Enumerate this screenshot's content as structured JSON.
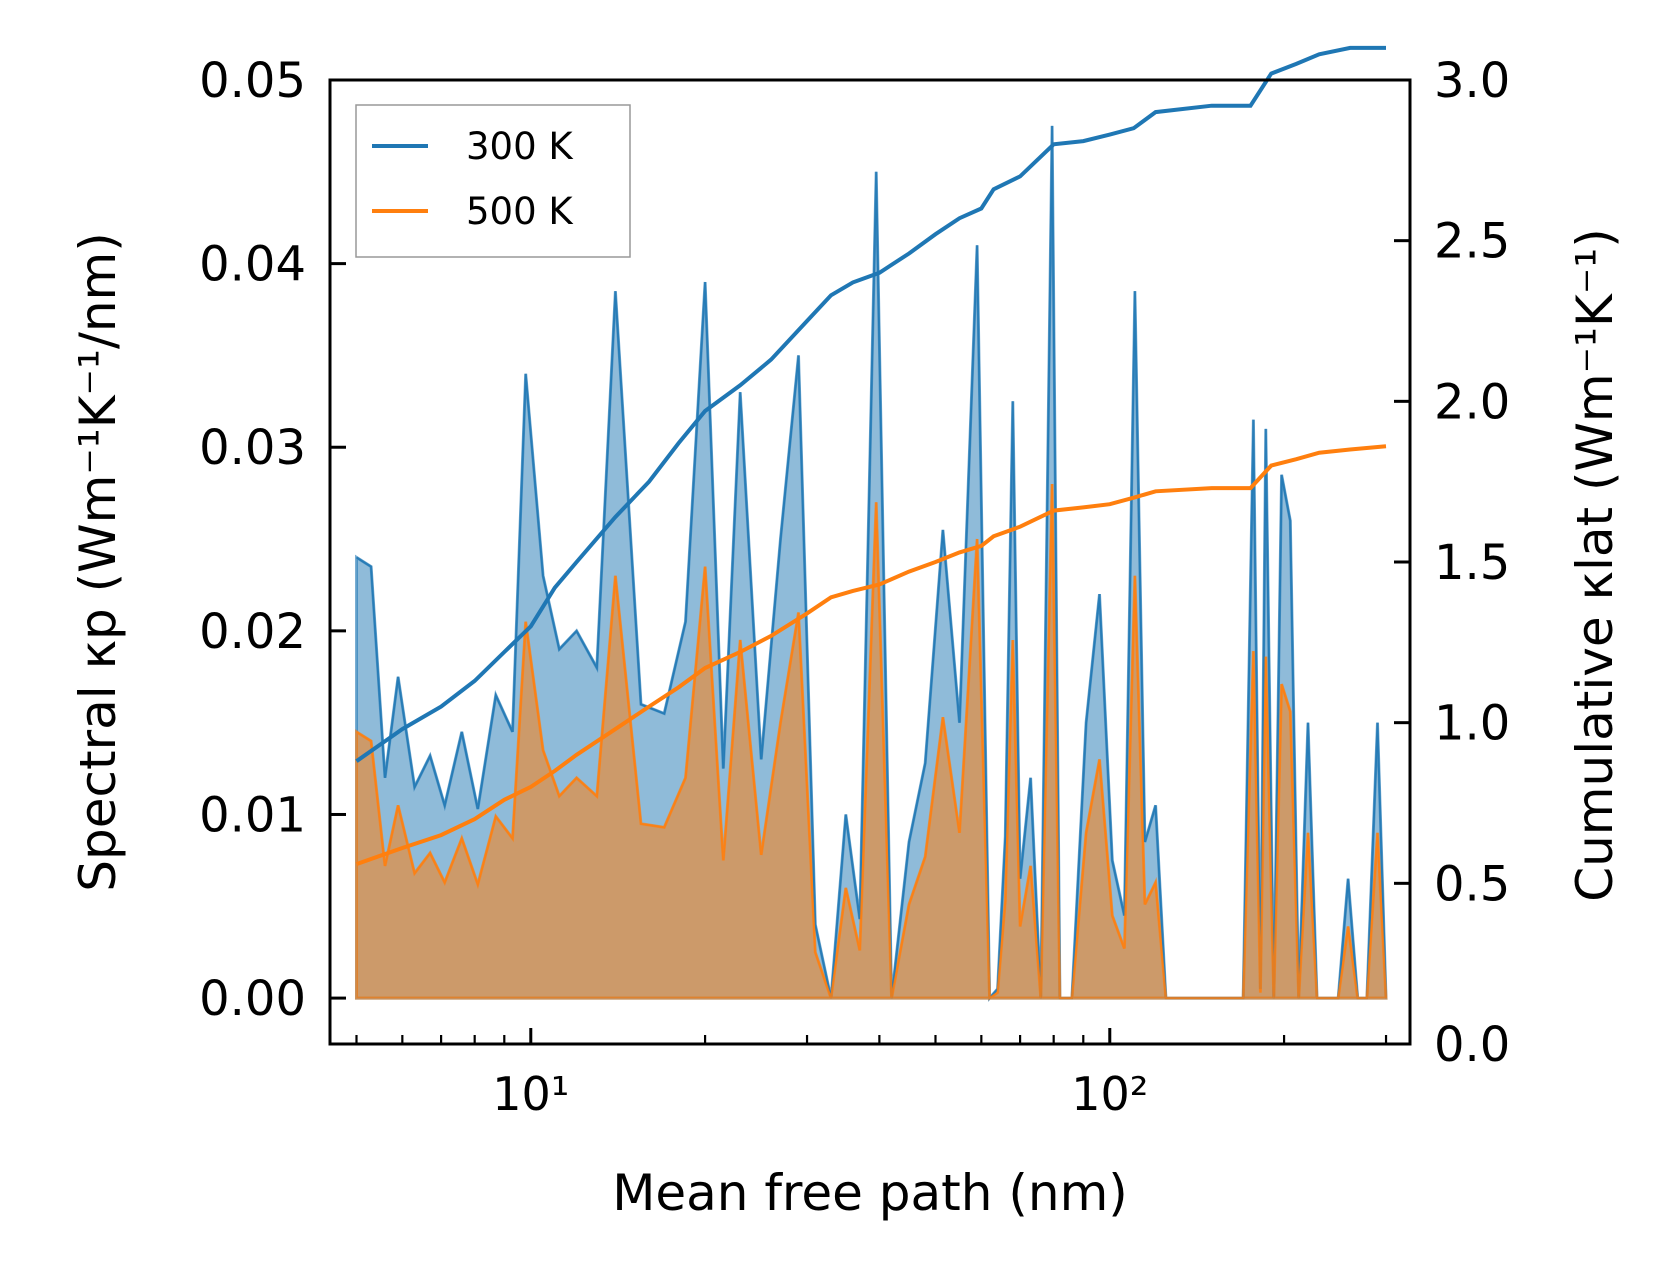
{
  "chart_data": {
    "type": "line",
    "xscale": "log",
    "xlabel": "Mean free path (nm)",
    "ylabel_left": "Spectral κp (Wm⁻¹K⁻¹/nm)",
    "ylabel_right": "Cumulative κlat (Wm⁻¹K⁻¹)",
    "xlim": [
      4.5,
      330
    ],
    "ylim_left": [
      -0.0025,
      0.05
    ],
    "ylim_right": [
      0.0,
      3.0
    ],
    "x_ticks": [
      {
        "value": 10,
        "label": "10¹"
      },
      {
        "value": 100,
        "label": "10²"
      }
    ],
    "y_left_ticks": [
      0.0,
      0.01,
      0.02,
      0.03,
      0.04,
      0.05
    ],
    "y_left_tick_labels": [
      "0.00",
      "0.01",
      "0.02",
      "0.03",
      "0.04",
      "0.05"
    ],
    "y_right_ticks": [
      0.0,
      0.5,
      1.0,
      1.5,
      2.0,
      2.5,
      3.0
    ],
    "y_right_tick_labels": [
      "0.0",
      "0.5",
      "1.0",
      "1.5",
      "2.0",
      "2.5",
      "3.0"
    ],
    "legend": {
      "position": "upper-left",
      "entries": [
        "300 K",
        "500 K"
      ]
    },
    "colors": {
      "300 K": "#1f77b4",
      "500 K": "#ff7f0e",
      "fill_300": "#1f77b4",
      "fill_500": "#ff7f0e"
    },
    "series": [
      {
        "name": "300 K spectral",
        "axis": "left",
        "x": [
          5.0,
          5.3,
          5.6,
          5.9,
          6.3,
          6.7,
          7.1,
          7.6,
          8.1,
          8.7,
          9.3,
          9.8,
          10.5,
          11.2,
          12.0,
          13.0,
          14.0,
          15.5,
          17.0,
          18.5,
          20.0,
          21.5,
          23.0,
          25.0,
          27.0,
          29.0,
          31.0,
          33.0,
          35.0,
          37.0,
          39.5,
          42.0,
          45.0,
          48.0,
          51.5,
          55.0,
          59.0,
          62.0,
          64.0,
          66.0,
          68.0,
          70.0,
          73.0,
          76.0,
          79.5,
          82.0,
          86.0,
          91.0,
          96.0,
          101.0,
          106.0,
          110.5,
          115.0,
          120.0,
          125.0,
          130.0,
          140.0,
          160.0,
          170.0,
          177.0,
          182.0,
          186.0,
          192.0,
          198.0,
          205.0,
          212.0,
          220.0,
          228.0,
          238.0,
          248.0,
          258.0,
          268.0,
          278.0,
          290.0,
          300.0
        ],
        "y": [
          0.024,
          0.0235,
          0.012,
          0.0175,
          0.0115,
          0.0132,
          0.0105,
          0.0145,
          0.0103,
          0.0165,
          0.0145,
          0.034,
          0.023,
          0.019,
          0.02,
          0.018,
          0.0385,
          0.016,
          0.0155,
          0.0205,
          0.039,
          0.0125,
          0.033,
          0.013,
          0.025,
          0.035,
          0.004,
          0.0,
          0.01,
          0.0043,
          0.045,
          0.0,
          0.0085,
          0.0128,
          0.0255,
          0.015,
          0.041,
          0.0,
          0.0005,
          0.0088,
          0.0325,
          0.0065,
          0.012,
          0.0,
          0.0475,
          0.0,
          0.0,
          0.015,
          0.022,
          0.0075,
          0.0045,
          0.0385,
          0.0085,
          0.0105,
          0.0,
          0.0,
          0.0,
          0.0,
          0.0,
          0.0315,
          0.0005,
          0.031,
          0.0,
          0.0285,
          0.026,
          0.0,
          0.015,
          0.0,
          0.0,
          0.0,
          0.0065,
          0.0,
          0.0,
          0.015,
          0.0
        ]
      },
      {
        "name": "500 K spectral",
        "axis": "left",
        "x": [
          5.0,
          5.3,
          5.6,
          5.9,
          6.3,
          6.7,
          7.1,
          7.6,
          8.1,
          8.7,
          9.3,
          9.8,
          10.5,
          11.2,
          12.0,
          13.0,
          14.0,
          15.5,
          17.0,
          18.5,
          20.0,
          21.5,
          23.0,
          25.0,
          27.0,
          29.0,
          31.0,
          33.0,
          35.0,
          37.0,
          39.5,
          42.0,
          45.0,
          48.0,
          51.5,
          55.0,
          59.0,
          62.0,
          64.0,
          66.0,
          68.0,
          70.0,
          73.0,
          76.0,
          79.5,
          82.0,
          86.0,
          91.0,
          96.0,
          101.0,
          106.0,
          110.5,
          115.0,
          120.0,
          125.0,
          130.0,
          140.0,
          160.0,
          170.0,
          177.0,
          182.0,
          186.0,
          192.0,
          198.0,
          205.0,
          212.0,
          220.0,
          228.0,
          238.0,
          248.0,
          258.0,
          268.0,
          278.0,
          290.0,
          300.0
        ],
        "y": [
          0.0145,
          0.014,
          0.0072,
          0.0105,
          0.0068,
          0.0079,
          0.0063,
          0.0087,
          0.0062,
          0.0099,
          0.0087,
          0.0205,
          0.0135,
          0.011,
          0.012,
          0.011,
          0.023,
          0.0095,
          0.0093,
          0.012,
          0.0235,
          0.0075,
          0.0195,
          0.0078,
          0.015,
          0.021,
          0.0025,
          0.0,
          0.006,
          0.0026,
          0.027,
          0.0,
          0.0051,
          0.0077,
          0.0153,
          0.009,
          0.025,
          0.0,
          0.0003,
          0.0053,
          0.0195,
          0.0039,
          0.0072,
          0.0,
          0.028,
          0.0,
          0.0,
          0.009,
          0.013,
          0.0045,
          0.0027,
          0.023,
          0.0051,
          0.0063,
          0.0,
          0.0,
          0.0,
          0.0,
          0.0,
          0.0189,
          0.0003,
          0.0186,
          0.0,
          0.0171,
          0.0156,
          0.0,
          0.009,
          0.0,
          0.0,
          0.0,
          0.0039,
          0.0,
          0.0,
          0.009,
          0.0
        ]
      },
      {
        "name": "300 K",
        "axis": "right",
        "x": [
          5.0,
          6.0,
          7.0,
          8.0,
          9.0,
          10.0,
          11.0,
          12.0,
          14.0,
          16.0,
          18.0,
          20.0,
          23.0,
          26.0,
          30.0,
          33.0,
          36.0,
          40.0,
          45.0,
          50.0,
          55.0,
          60.0,
          63.0,
          70.0,
          80.0,
          90.0,
          100.0,
          110.0,
          120.0,
          150.0,
          175.0,
          190.0,
          210.0,
          230.0,
          260.0,
          300.0
        ],
        "y": [
          0.88,
          0.98,
          1.05,
          1.13,
          1.22,
          1.3,
          1.42,
          1.5,
          1.64,
          1.75,
          1.87,
          1.97,
          2.05,
          2.13,
          2.25,
          2.33,
          2.37,
          2.4,
          2.46,
          2.52,
          2.57,
          2.6,
          2.66,
          2.7,
          2.8,
          2.81,
          2.83,
          2.85,
          2.9,
          2.92,
          2.92,
          3.02,
          3.05,
          3.08,
          3.1,
          3.1
        ]
      },
      {
        "name": "500 K",
        "axis": "right",
        "x": [
          5.0,
          6.0,
          7.0,
          8.0,
          9.0,
          10.0,
          11.0,
          12.0,
          14.0,
          16.0,
          18.0,
          20.0,
          23.0,
          26.0,
          30.0,
          33.0,
          36.0,
          40.0,
          45.0,
          50.0,
          55.0,
          60.0,
          63.0,
          70.0,
          80.0,
          90.0,
          100.0,
          110.0,
          120.0,
          150.0,
          175.0,
          190.0,
          210.0,
          230.0,
          260.0,
          300.0
        ],
        "y": [
          0.56,
          0.61,
          0.65,
          0.7,
          0.76,
          0.8,
          0.85,
          0.9,
          0.98,
          1.05,
          1.11,
          1.17,
          1.22,
          1.27,
          1.34,
          1.39,
          1.41,
          1.43,
          1.47,
          1.5,
          1.53,
          1.55,
          1.58,
          1.61,
          1.66,
          1.67,
          1.68,
          1.7,
          1.72,
          1.73,
          1.73,
          1.8,
          1.82,
          1.84,
          1.85,
          1.86
        ]
      }
    ]
  }
}
